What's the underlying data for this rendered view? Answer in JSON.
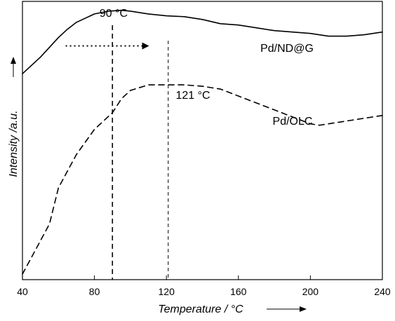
{
  "chart_data": {
    "type": "line",
    "xlabel": "Temperature / °C",
    "ylabel": "Intensity /a.u.",
    "xlim": [
      40,
      240
    ],
    "ylim": [
      0,
      1
    ],
    "x_ticks": [
      40,
      80,
      120,
      160,
      200,
      240
    ],
    "series": [
      {
        "name": "Pd/ND@G",
        "line_style": "solid",
        "points": [
          [
            40,
            0.74
          ],
          [
            50,
            0.8
          ],
          [
            60,
            0.87
          ],
          [
            65,
            0.9
          ],
          [
            70,
            0.925
          ],
          [
            80,
            0.955
          ],
          [
            88,
            0.965
          ],
          [
            95,
            0.968
          ],
          [
            100,
            0.965
          ],
          [
            110,
            0.955
          ],
          [
            120,
            0.948
          ],
          [
            130,
            0.945
          ],
          [
            140,
            0.935
          ],
          [
            150,
            0.92
          ],
          [
            160,
            0.915
          ],
          [
            170,
            0.905
          ],
          [
            180,
            0.895
          ],
          [
            190,
            0.89
          ],
          [
            200,
            0.885
          ],
          [
            210,
            0.875
          ],
          [
            220,
            0.875
          ],
          [
            230,
            0.88
          ],
          [
            240,
            0.89
          ]
        ]
      },
      {
        "name": "Pd/OLC",
        "line_style": "dashed",
        "points": [
          [
            40,
            0.02
          ],
          [
            55,
            0.2
          ],
          [
            60,
            0.33
          ],
          [
            70,
            0.45
          ],
          [
            80,
            0.54
          ],
          [
            90,
            0.6
          ],
          [
            95,
            0.65
          ],
          [
            100,
            0.68
          ],
          [
            110,
            0.7
          ],
          [
            120,
            0.7
          ],
          [
            130,
            0.7
          ],
          [
            140,
            0.695
          ],
          [
            150,
            0.685
          ],
          [
            160,
            0.66
          ],
          [
            170,
            0.635
          ],
          [
            180,
            0.61
          ],
          [
            190,
            0.585
          ],
          [
            200,
            0.56
          ],
          [
            205,
            0.555
          ],
          [
            210,
            0.56
          ],
          [
            220,
            0.57
          ],
          [
            230,
            0.58
          ],
          [
            240,
            0.59
          ]
        ]
      }
    ],
    "markers": [
      {
        "x": 90,
        "label": "90 °C",
        "style": "dashed"
      },
      {
        "x": 121,
        "label": "121 °C",
        "style": "dashed"
      }
    ],
    "annotations": [
      {
        "text": "Pd/ND@G",
        "x": 163,
        "y": 0.91
      },
      {
        "text": "Pd/OLC",
        "x": 180,
        "y": 0.66
      }
    ],
    "arrows": [
      {
        "from": [
          64,
          0.84
        ],
        "to": [
          110,
          0.84
        ],
        "style": "dotted"
      }
    ],
    "grid": false,
    "legend": "none"
  }
}
